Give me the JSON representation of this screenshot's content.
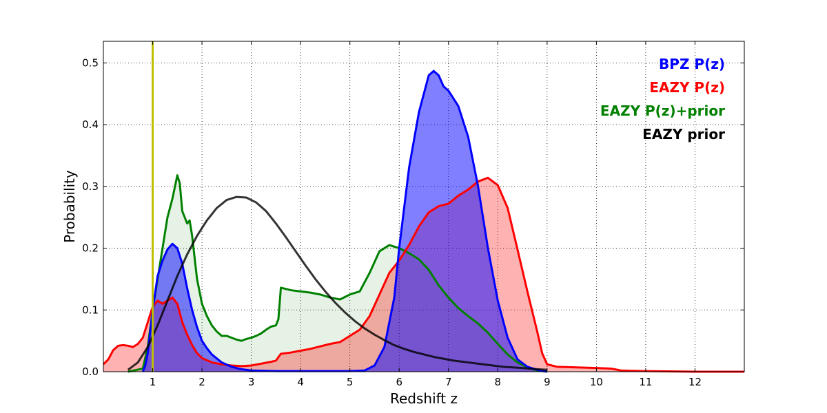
{
  "chart_data": {
    "type": "area",
    "title": "",
    "xlabel": "Redshift z",
    "ylabel": "Probability",
    "xlim": [
      0,
      13
    ],
    "ylim": [
      0,
      0.535
    ],
    "x_ticks": [
      1,
      2,
      3,
      4,
      5,
      6,
      7,
      8,
      9,
      10,
      11,
      12
    ],
    "y_ticks": [
      0.0,
      0.1,
      0.2,
      0.3,
      0.4,
      0.5
    ],
    "y_tick_labels": [
      "0.0",
      "0.1",
      "0.2",
      "0.3",
      "0.4",
      "0.5"
    ],
    "grid": true,
    "legend_position": "top-right",
    "reference_line": {
      "x": 1.0,
      "color": "#bfbf00"
    },
    "series": [
      {
        "name": "EAZY P(z)+prior",
        "color": "#008000",
        "fill": "#008000",
        "fill_opacity": 0.1,
        "points": [
          [
            0.5,
            0
          ],
          [
            0.8,
            0.005
          ],
          [
            0.9,
            0.04
          ],
          [
            1.0,
            0.1
          ],
          [
            1.1,
            0.15
          ],
          [
            1.2,
            0.2
          ],
          [
            1.3,
            0.25
          ],
          [
            1.4,
            0.28
          ],
          [
            1.5,
            0.318
          ],
          [
            1.55,
            0.305
          ],
          [
            1.6,
            0.26
          ],
          [
            1.65,
            0.25
          ],
          [
            1.7,
            0.24
          ],
          [
            1.75,
            0.245
          ],
          [
            1.8,
            0.22
          ],
          [
            1.9,
            0.15
          ],
          [
            2.0,
            0.11
          ],
          [
            2.1,
            0.09
          ],
          [
            2.2,
            0.075
          ],
          [
            2.3,
            0.065
          ],
          [
            2.4,
            0.058
          ],
          [
            2.5,
            0.058
          ],
          [
            2.6,
            0.055
          ],
          [
            2.7,
            0.052
          ],
          [
            2.8,
            0.05
          ],
          [
            2.9,
            0.053
          ],
          [
            3.0,
            0.055
          ],
          [
            3.1,
            0.058
          ],
          [
            3.2,
            0.062
          ],
          [
            3.3,
            0.068
          ],
          [
            3.4,
            0.073
          ],
          [
            3.5,
            0.075
          ],
          [
            3.55,
            0.085
          ],
          [
            3.6,
            0.136
          ],
          [
            3.8,
            0.132
          ],
          [
            4.0,
            0.13
          ],
          [
            4.2,
            0.128
          ],
          [
            4.4,
            0.125
          ],
          [
            4.6,
            0.12
          ],
          [
            4.8,
            0.117
          ],
          [
            5.0,
            0.125
          ],
          [
            5.2,
            0.13
          ],
          [
            5.4,
            0.16
          ],
          [
            5.6,
            0.195
          ],
          [
            5.8,
            0.205
          ],
          [
            6.0,
            0.2
          ],
          [
            6.2,
            0.192
          ],
          [
            6.4,
            0.182
          ],
          [
            6.6,
            0.165
          ],
          [
            6.8,
            0.14
          ],
          [
            7.0,
            0.12
          ],
          [
            7.2,
            0.103
          ],
          [
            7.4,
            0.09
          ],
          [
            7.6,
            0.078
          ],
          [
            7.8,
            0.063
          ],
          [
            8.0,
            0.045
          ],
          [
            8.2,
            0.028
          ],
          [
            8.4,
            0.015
          ],
          [
            8.6,
            0.007
          ],
          [
            8.8,
            0.002
          ],
          [
            9.0,
            0.0
          ]
        ]
      },
      {
        "name": "EAZY P(z)",
        "color": "#ff0000",
        "fill": "#ff0000",
        "fill_opacity": 0.3,
        "points": [
          [
            0.0,
            0.012
          ],
          [
            0.1,
            0.02
          ],
          [
            0.2,
            0.035
          ],
          [
            0.3,
            0.042
          ],
          [
            0.4,
            0.043
          ],
          [
            0.5,
            0.042
          ],
          [
            0.6,
            0.04
          ],
          [
            0.7,
            0.045
          ],
          [
            0.8,
            0.055
          ],
          [
            0.9,
            0.08
          ],
          [
            1.0,
            0.105
          ],
          [
            1.1,
            0.115
          ],
          [
            1.2,
            0.11
          ],
          [
            1.3,
            0.115
          ],
          [
            1.4,
            0.12
          ],
          [
            1.5,
            0.11
          ],
          [
            1.6,
            0.08
          ],
          [
            1.7,
            0.06
          ],
          [
            1.8,
            0.043
          ],
          [
            1.9,
            0.03
          ],
          [
            2.0,
            0.022
          ],
          [
            2.2,
            0.015
          ],
          [
            2.4,
            0.012
          ],
          [
            2.6,
            0.01
          ],
          [
            2.8,
            0.009
          ],
          [
            3.0,
            0.01
          ],
          [
            3.2,
            0.013
          ],
          [
            3.4,
            0.016
          ],
          [
            3.5,
            0.018
          ],
          [
            3.6,
            0.029
          ],
          [
            3.8,
            0.031
          ],
          [
            4.0,
            0.034
          ],
          [
            4.2,
            0.037
          ],
          [
            4.4,
            0.041
          ],
          [
            4.6,
            0.045
          ],
          [
            4.8,
            0.048
          ],
          [
            5.0,
            0.058
          ],
          [
            5.2,
            0.068
          ],
          [
            5.4,
            0.09
          ],
          [
            5.6,
            0.125
          ],
          [
            5.8,
            0.16
          ],
          [
            6.0,
            0.18
          ],
          [
            6.2,
            0.205
          ],
          [
            6.4,
            0.235
          ],
          [
            6.6,
            0.258
          ],
          [
            6.8,
            0.268
          ],
          [
            7.0,
            0.272
          ],
          [
            7.2,
            0.285
          ],
          [
            7.4,
            0.295
          ],
          [
            7.6,
            0.308
          ],
          [
            7.8,
            0.314
          ],
          [
            8.0,
            0.302
          ],
          [
            8.2,
            0.265
          ],
          [
            8.4,
            0.198
          ],
          [
            8.6,
            0.13
          ],
          [
            8.8,
            0.065
          ],
          [
            8.9,
            0.03
          ],
          [
            9.0,
            0.012
          ],
          [
            9.2,
            0.008
          ],
          [
            9.6,
            0.007
          ],
          [
            10.0,
            0.006
          ],
          [
            10.3,
            0.005
          ],
          [
            10.5,
            0.002
          ],
          [
            11.0,
            0.001
          ],
          [
            12.0,
            0.0
          ],
          [
            13.0,
            0.0
          ]
        ]
      },
      {
        "name": "BPZ P(z)",
        "color": "#0000ff",
        "fill": "#0000ff",
        "fill_opacity": 0.5,
        "points": [
          [
            0.8,
            0.0
          ],
          [
            0.85,
            0.01
          ],
          [
            0.9,
            0.03
          ],
          [
            1.0,
            0.1
          ],
          [
            1.1,
            0.155
          ],
          [
            1.2,
            0.18
          ],
          [
            1.3,
            0.198
          ],
          [
            1.4,
            0.207
          ],
          [
            1.5,
            0.2
          ],
          [
            1.6,
            0.175
          ],
          [
            1.7,
            0.135
          ],
          [
            1.8,
            0.1
          ],
          [
            1.9,
            0.072
          ],
          [
            2.0,
            0.05
          ],
          [
            2.1,
            0.038
          ],
          [
            2.2,
            0.028
          ],
          [
            2.4,
            0.015
          ],
          [
            2.6,
            0.008
          ],
          [
            2.8,
            0.004
          ],
          [
            3.0,
            0.002
          ],
          [
            3.5,
            0.001
          ],
          [
            5.0,
            0.001
          ],
          [
            5.3,
            0.002
          ],
          [
            5.5,
            0.01
          ],
          [
            5.7,
            0.04
          ],
          [
            5.9,
            0.12
          ],
          [
            6.0,
            0.2
          ],
          [
            6.2,
            0.33
          ],
          [
            6.4,
            0.42
          ],
          [
            6.6,
            0.48
          ],
          [
            6.7,
            0.487
          ],
          [
            6.8,
            0.48
          ],
          [
            6.9,
            0.462
          ],
          [
            7.0,
            0.455
          ],
          [
            7.2,
            0.43
          ],
          [
            7.4,
            0.38
          ],
          [
            7.6,
            0.3
          ],
          [
            7.8,
            0.2
          ],
          [
            8.0,
            0.115
          ],
          [
            8.2,
            0.055
          ],
          [
            8.4,
            0.02
          ],
          [
            8.6,
            0.008
          ],
          [
            8.8,
            0.003
          ],
          [
            9.0,
            0.0
          ]
        ]
      },
      {
        "name": "EAZY prior",
        "color": "#000000",
        "fill": "none",
        "opacity": 0.8,
        "points": [
          [
            0.5,
            0.003
          ],
          [
            0.7,
            0.015
          ],
          [
            0.9,
            0.04
          ],
          [
            1.1,
            0.075
          ],
          [
            1.3,
            0.115
          ],
          [
            1.5,
            0.155
          ],
          [
            1.7,
            0.19
          ],
          [
            1.9,
            0.22
          ],
          [
            2.1,
            0.245
          ],
          [
            2.3,
            0.265
          ],
          [
            2.5,
            0.278
          ],
          [
            2.7,
            0.283
          ],
          [
            2.9,
            0.282
          ],
          [
            3.1,
            0.274
          ],
          [
            3.3,
            0.26
          ],
          [
            3.5,
            0.24
          ],
          [
            3.7,
            0.218
          ],
          [
            3.9,
            0.195
          ],
          [
            4.1,
            0.172
          ],
          [
            4.3,
            0.15
          ],
          [
            4.5,
            0.13
          ],
          [
            4.7,
            0.112
          ],
          [
            4.9,
            0.096
          ],
          [
            5.1,
            0.082
          ],
          [
            5.3,
            0.07
          ],
          [
            5.5,
            0.06
          ],
          [
            5.7,
            0.051
          ],
          [
            5.9,
            0.043
          ],
          [
            6.1,
            0.037
          ],
          [
            6.3,
            0.032
          ],
          [
            6.5,
            0.028
          ],
          [
            6.7,
            0.024
          ],
          [
            6.9,
            0.021
          ],
          [
            7.1,
            0.018
          ],
          [
            7.3,
            0.016
          ],
          [
            7.5,
            0.014
          ],
          [
            7.7,
            0.012
          ],
          [
            7.9,
            0.01
          ],
          [
            8.1,
            0.008
          ],
          [
            8.3,
            0.007
          ],
          [
            8.5,
            0.006
          ],
          [
            8.8,
            0.004
          ],
          [
            9.0,
            0.003
          ]
        ]
      }
    ],
    "legend": [
      {
        "label": "BPZ P(z)",
        "color": "#0000ff"
      },
      {
        "label": "EAZY P(z)",
        "color": "#ff0000"
      },
      {
        "label": "EAZY P(z)+prior",
        "color": "#008000"
      },
      {
        "label": "EAZY prior",
        "color": "#000000"
      }
    ]
  }
}
